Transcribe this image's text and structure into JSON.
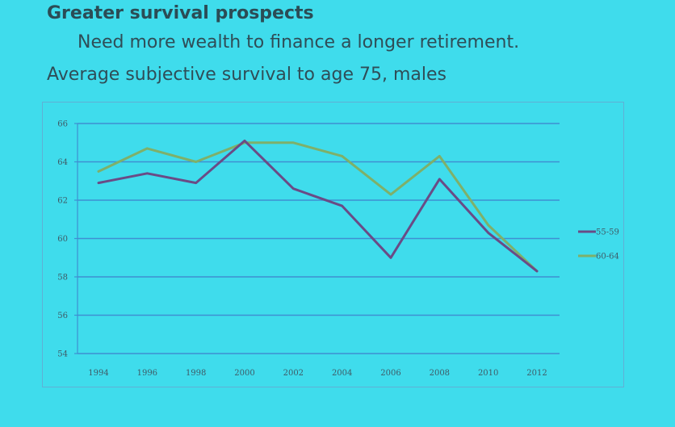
{
  "slide": {
    "heading": "Greater survival prospects",
    "subtitle": "Need more wealth to finance a longer retirement.",
    "chart_title": "Average subjective survival to age 75, males"
  },
  "colors": {
    "background": "#3fdcec",
    "grid": "#3f8fd2",
    "series_55_59": "#6a4b86",
    "series_60_64": "#7eb06a"
  },
  "chart_data": {
    "type": "line",
    "title": "Average subjective survival to age 75, males",
    "xlabel": "",
    "ylabel": "",
    "x": [
      "1994",
      "1996",
      "1998",
      "2000",
      "2002",
      "2004",
      "2006",
      "2008",
      "2010",
      "2012"
    ],
    "ylim": [
      54,
      66
    ],
    "yticks": [
      "54",
      "56",
      "58",
      "60",
      "62",
      "64",
      "66"
    ],
    "grid": true,
    "legend_position": "right",
    "series": [
      {
        "name": "55-59",
        "color": "#6a4b86",
        "values": [
          62.9,
          63.4,
          62.9,
          65.1,
          62.6,
          61.7,
          59.0,
          63.1,
          60.3,
          58.3
        ]
      },
      {
        "name": "60-64",
        "color": "#7eb06a",
        "values": [
          63.5,
          64.7,
          64.0,
          65.0,
          65.0,
          64.3,
          62.3,
          64.3,
          60.7,
          58.3
        ]
      }
    ]
  }
}
